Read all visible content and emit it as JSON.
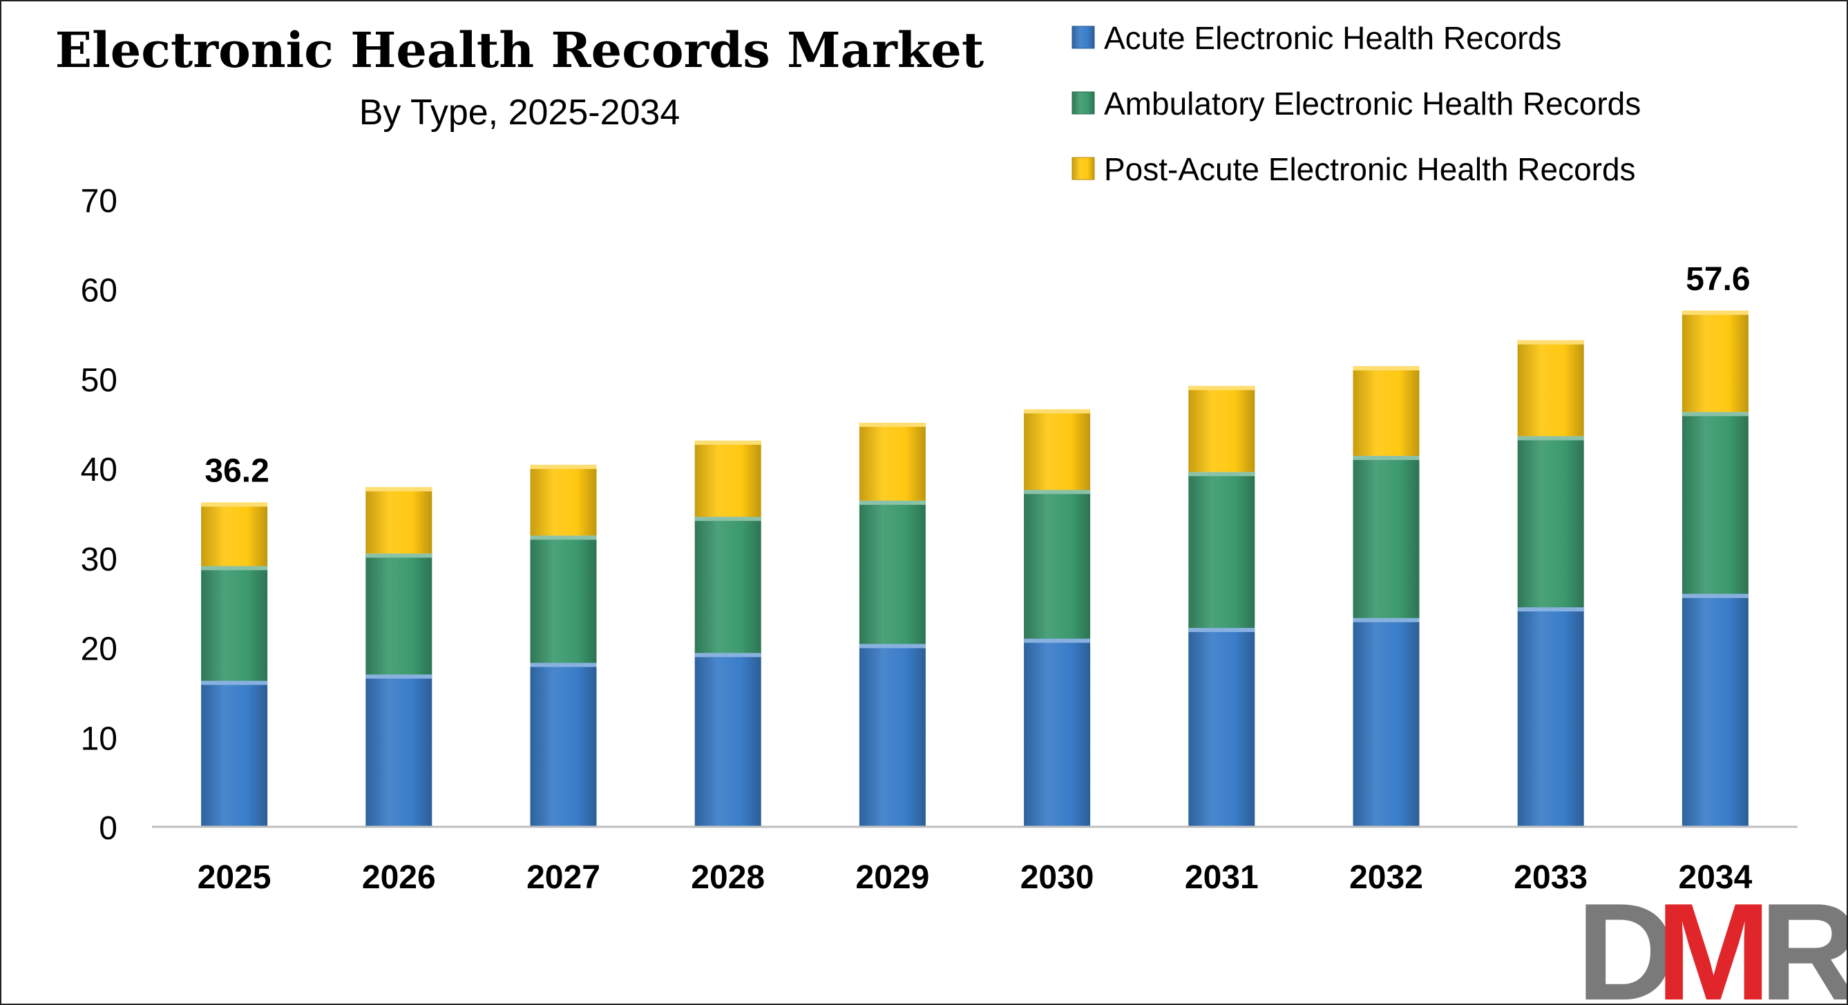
{
  "chart_data": {
    "type": "bar",
    "stacked": true,
    "title": "Electronic Health Records Market",
    "subtitle": "By Type, 2025-2034",
    "xlabel": "",
    "ylabel": "",
    "ylim": [
      0,
      70
    ],
    "yticks": [
      0,
      10,
      20,
      30,
      40,
      50,
      60,
      70
    ],
    "grid": false,
    "legend_position": "top-right",
    "categories": [
      "2025",
      "2026",
      "2027",
      "2028",
      "2029",
      "2030",
      "2031",
      "2032",
      "2033",
      "2034"
    ],
    "series": [
      {
        "name": "Acute Electronic Health Records",
        "color": "#3A7DC9",
        "values": [
          16.3,
          17.0,
          18.3,
          19.4,
          20.4,
          21.0,
          22.2,
          23.3,
          24.5,
          26.0
        ]
      },
      {
        "name": "Ambulatory Electronic Health Records",
        "color": "#3C9A6E",
        "values": [
          12.8,
          13.5,
          14.2,
          15.2,
          16.0,
          16.6,
          17.4,
          18.1,
          19.1,
          20.3
        ]
      },
      {
        "name": "Post-Acute Electronic Health Records",
        "color": "#FFC812",
        "values": [
          7.1,
          7.4,
          7.9,
          8.5,
          8.7,
          9.0,
          9.6,
          10.0,
          10.7,
          11.3
        ]
      }
    ],
    "data_labels": [
      {
        "category": "2025",
        "text": "36.2"
      },
      {
        "category": "2034",
        "text": "57.6"
      }
    ]
  },
  "logo": {
    "text": "DMR",
    "colors": [
      "#7A7A7A",
      "#E0262B"
    ]
  }
}
